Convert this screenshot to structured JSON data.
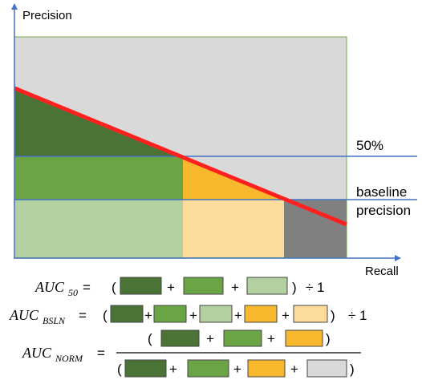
{
  "axes": {
    "y_label": "Precision",
    "x_label": "Recall"
  },
  "reference_lines": {
    "fifty_label": "50%",
    "baseline_label_line1": "baseline",
    "baseline_label_line2": "precision"
  },
  "colors": {
    "background_region": "#d9d9d9",
    "frame": "#70ad47",
    "axis": "#4472c4",
    "hline": "#4472c4",
    "dark_green": "#4a7335",
    "mid_green": "#6aa445",
    "light_green": "#b3d1a0",
    "orange": "#f8b82e",
    "light_orange": "#fbdc9a",
    "gray_region": "#808080",
    "light_gray_box": "#d9d9d9",
    "pr_curve": "#ff2020"
  },
  "formulas": {
    "auc50": {
      "lhs_main": "AUC",
      "lhs_sub": "50",
      "equals": "=",
      "open": "(",
      "plus": "+",
      "close": ")",
      "divide": "÷ 1"
    },
    "aucbsln": {
      "lhs_main": "AUC",
      "lhs_sub": "BSLN",
      "equals": "=",
      "open": "(",
      "plus": "+",
      "close": ")",
      "divide": "÷ 1"
    },
    "aucnorm": {
      "lhs_main": "AUC",
      "lhs_sub": "NORM",
      "equals": "=",
      "open": "(",
      "plus": "+",
      "close": ")"
    }
  }
}
